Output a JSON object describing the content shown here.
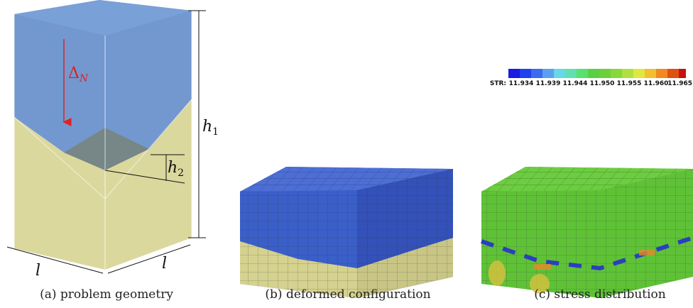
{
  "panel_a": {
    "delta_label": "Δ",
    "delta_sub": "N",
    "h1_label": "h",
    "h1_sub": "1",
    "h2_label": "h",
    "h2_sub": "2",
    "width_label_left": "l",
    "width_label_right": "l",
    "caption": "(a) problem geometry"
  },
  "panel_b": {
    "caption": "(b) deformed configuration"
  },
  "panel_c": {
    "colorbar_title": "STR:",
    "colorbar_ticks": [
      "11.934",
      "11.939",
      "11.944",
      "11.950",
      "11.955",
      "11.960",
      "11.965"
    ],
    "caption": "(c) stress distribution"
  }
}
